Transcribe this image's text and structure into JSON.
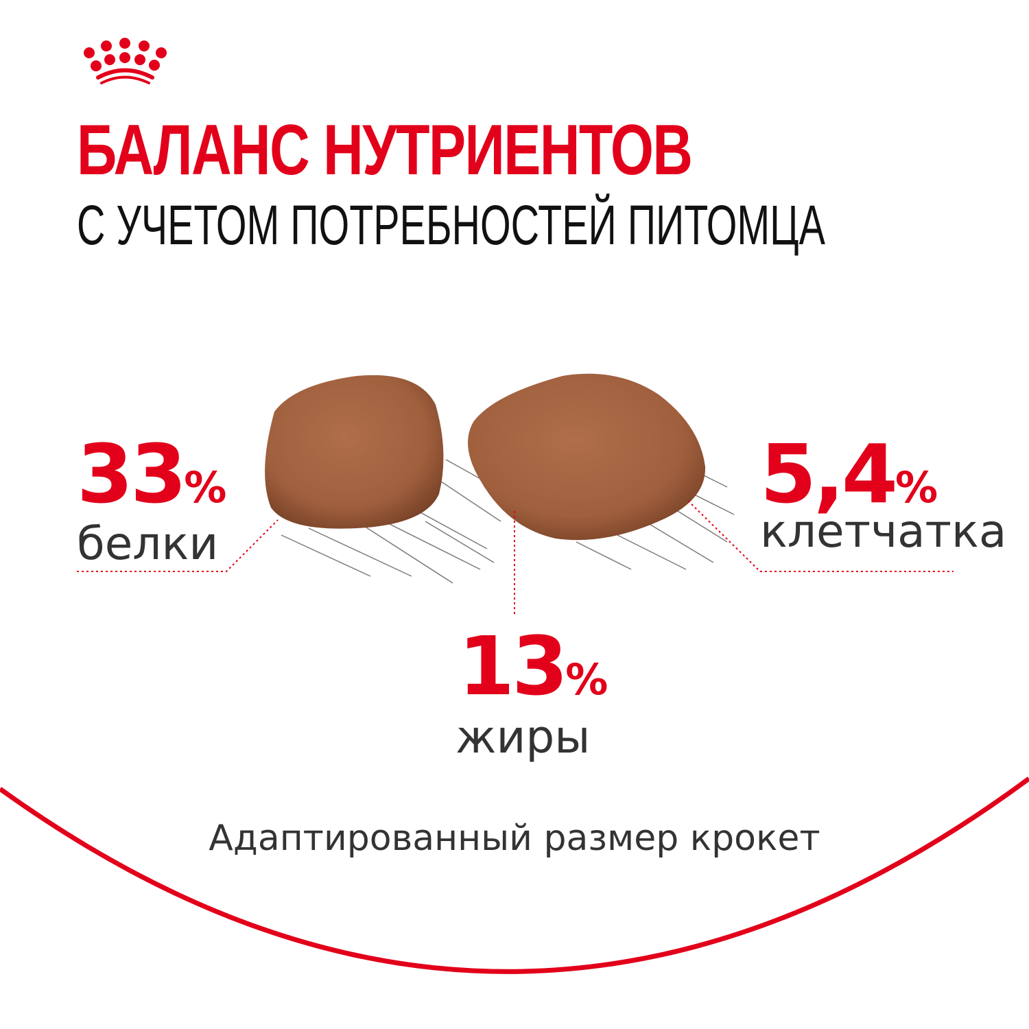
{
  "brand": {
    "logo": "royal-canin-crown",
    "color": "#e2001a"
  },
  "header": {
    "title": "БАЛАНС НУТРИЕНТОВ",
    "subtitle": "С УЧЕТОМ ПОТРЕБНОСТЕЙ ПИТОМЦА"
  },
  "nutrients": [
    {
      "value": "33",
      "unit": "%",
      "label": "белки"
    },
    {
      "value": "13",
      "unit": "%",
      "label": "жиры"
    },
    {
      "value": "5,4",
      "unit": "%",
      "label": "клетчатка"
    }
  ],
  "footer": {
    "caption": "Адаптированный размер крокет"
  },
  "colors": {
    "accent": "#e2001a",
    "text": "#333333",
    "kibble": "#a8623f"
  }
}
